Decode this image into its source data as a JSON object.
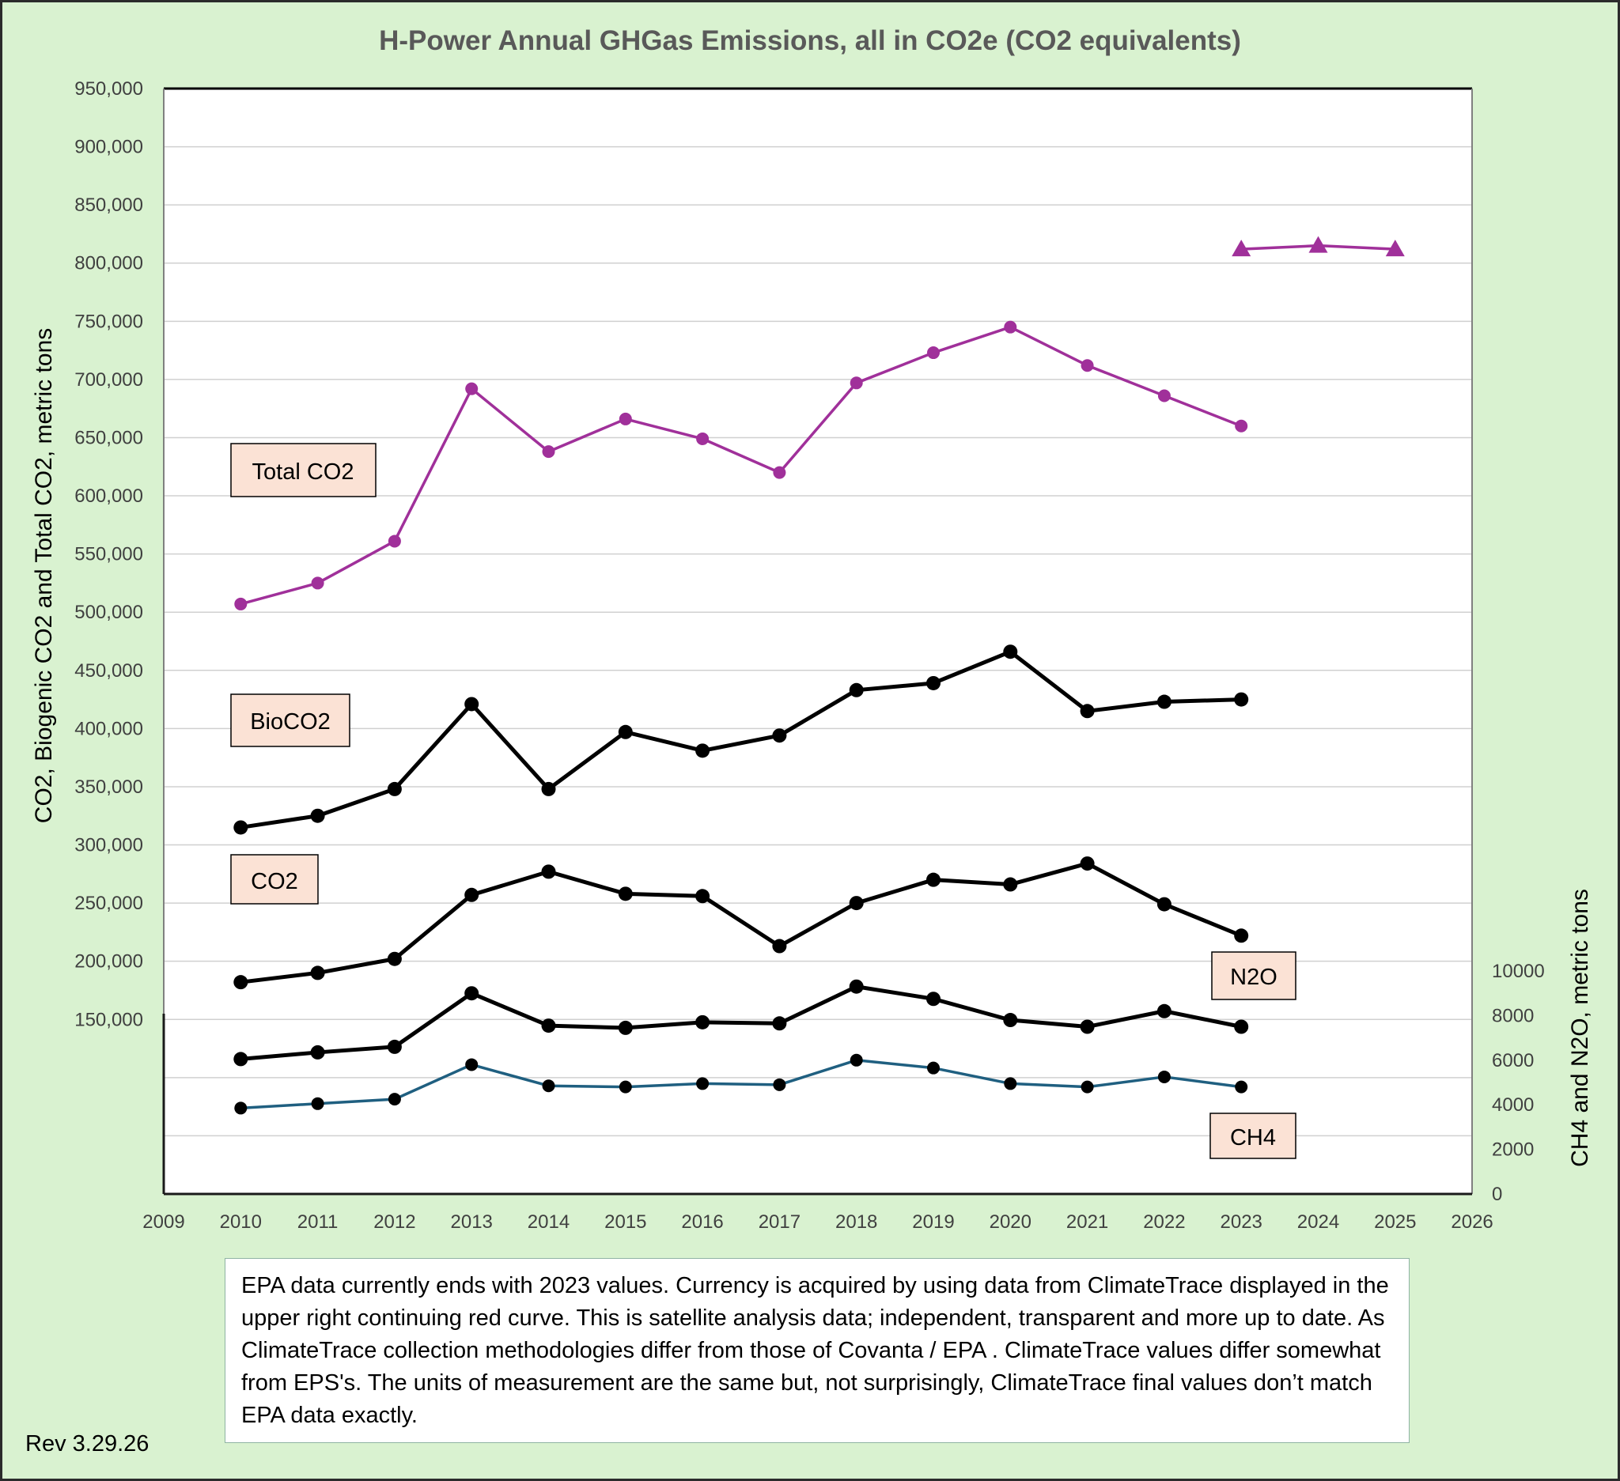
{
  "title": "H-Power Annual GHGas Emissions, all in CO2e (CO2 equivalents)",
  "chart_data": {
    "type": "line",
    "title": "H-Power Annual GHGas Emissions, all in CO2e (CO2 equivalents)",
    "xlabel": "",
    "ylabel": "CO2, Biogenic CO2 and Total CO2, metric tons",
    "y2label": "CH4 and N2O, metric tons",
    "xlim": [
      2009,
      2026
    ],
    "ylim": [
      0,
      950000
    ],
    "y2lim": [
      0,
      10000
    ],
    "x_ticks": [
      "2009",
      "2010",
      "2011",
      "2012",
      "2013",
      "2014",
      "2015",
      "2016",
      "2017",
      "2018",
      "2019",
      "2020",
      "2021",
      "2022",
      "2023",
      "2024",
      "2025",
      "2026"
    ],
    "y_ticks": [
      "950,000",
      "900,000",
      "850,000",
      "800,000",
      "750,000",
      "700,000",
      "650,000",
      "600,000",
      "550,000",
      "500,000",
      "450,000",
      "400,000",
      "350,000",
      "300,000",
      "250,000",
      "200,000",
      "150,000"
    ],
    "y_tick_values": [
      950000,
      900000,
      850000,
      800000,
      750000,
      700000,
      650000,
      600000,
      550000,
      500000,
      450000,
      400000,
      350000,
      300000,
      250000,
      200000,
      150000
    ],
    "y2_ticks": [
      "10000",
      "8000",
      "6000",
      "4000",
      "2000",
      "0"
    ],
    "y2_tick_values": [
      10000,
      8000,
      6000,
      4000,
      2000,
      0
    ],
    "grid": true,
    "series": [
      {
        "name": "Total CO2",
        "axis": "left",
        "color": "#a0309a",
        "marker": "circle",
        "x": [
          2010,
          2011,
          2012,
          2013,
          2014,
          2015,
          2016,
          2017,
          2018,
          2019,
          2020,
          2021,
          2022,
          2023
        ],
        "values": [
          507000,
          525000,
          561000,
          692000,
          638000,
          666000,
          649000,
          620000,
          697000,
          723000,
          745000,
          712000,
          686000,
          660000
        ]
      },
      {
        "name": "Total CO2 (ClimateTrace)",
        "axis": "left",
        "color": "#a0309a",
        "marker": "triangle",
        "x": [
          2023,
          2024,
          2025
        ],
        "values": [
          812000,
          815000,
          812000
        ]
      },
      {
        "name": "BioCO2",
        "axis": "left",
        "color": "#000000",
        "marker": "circle",
        "x": [
          2010,
          2011,
          2012,
          2013,
          2014,
          2015,
          2016,
          2017,
          2018,
          2019,
          2020,
          2021,
          2022,
          2023
        ],
        "values": [
          315000,
          325000,
          348000,
          421000,
          348000,
          397000,
          381000,
          394000,
          433000,
          439000,
          466000,
          415000,
          423000,
          425000
        ]
      },
      {
        "name": "CO2",
        "axis": "left",
        "color": "#000000",
        "marker": "circle",
        "x": [
          2010,
          2011,
          2012,
          2013,
          2014,
          2015,
          2016,
          2017,
          2018,
          2019,
          2020,
          2021,
          2022,
          2023
        ],
        "values": [
          182000,
          190000,
          202000,
          257000,
          277000,
          258000,
          256000,
          213000,
          250000,
          270000,
          266000,
          284000,
          249000,
          222000
        ]
      },
      {
        "name": "N2O",
        "axis": "right",
        "color": "#000000",
        "marker": "circle",
        "x": [
          2010,
          2011,
          2012,
          2013,
          2014,
          2015,
          2016,
          2017,
          2018,
          2019,
          2020,
          2021,
          2022,
          2023
        ],
        "values": [
          6050,
          6350,
          6600,
          9000,
          7550,
          7450,
          7700,
          7650,
          9300,
          8750,
          7800,
          7500,
          8200,
          7500
        ]
      },
      {
        "name": "CH4",
        "axis": "right",
        "color": "#1f5f80",
        "marker": "circle",
        "x": [
          2010,
          2011,
          2012,
          2013,
          2014,
          2015,
          2016,
          2017,
          2018,
          2019,
          2020,
          2021,
          2022,
          2023
        ],
        "values": [
          3850,
          4050,
          4250,
          5800,
          4850,
          4800,
          4950,
          4900,
          6000,
          5650,
          4950,
          4800,
          5250,
          4800
        ]
      }
    ],
    "annotations": [
      "Total CO2",
      "BioCO2",
      "CO2",
      "N2O",
      "CH4"
    ]
  },
  "note_text": "EPA data currently ends with 2023 values. Currency is acquired by using data from ClimateTrace displayed in the upper right continuing red curve. This is satellite analysis data; independent, transparent and more up to date. As ClimateTrace collection methodologies differ from those of Covanta / EPA . ClimateTrace  values differ somewhat from EPS's. The units of measurement are the same but, not surprisingly, ClimateTrace final values don’t match EPA data exactly.",
  "revision": "Rev 3.29.26"
}
